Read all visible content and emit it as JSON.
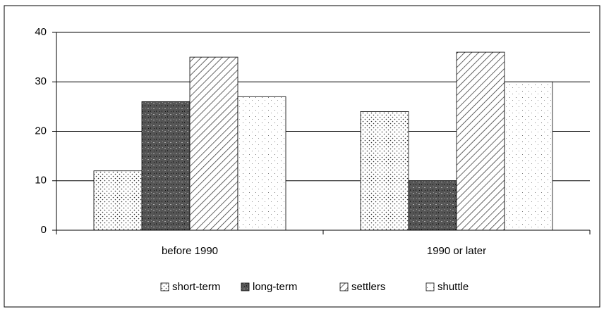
{
  "chart_data": {
    "type": "bar",
    "categories": [
      "before 1990",
      "1990 or later"
    ],
    "series": [
      {
        "name": "short-term",
        "values": [
          12,
          24
        ]
      },
      {
        "name": "long-term",
        "values": [
          26,
          10
        ]
      },
      {
        "name": "settlers",
        "values": [
          35,
          36
        ]
      },
      {
        "name": "shuttle",
        "values": [
          27,
          30
        ]
      }
    ],
    "ylim": [
      0,
      40
    ],
    "yticks": [
      0,
      10,
      20,
      30,
      40
    ],
    "grid": true,
    "legend": "bottom"
  }
}
